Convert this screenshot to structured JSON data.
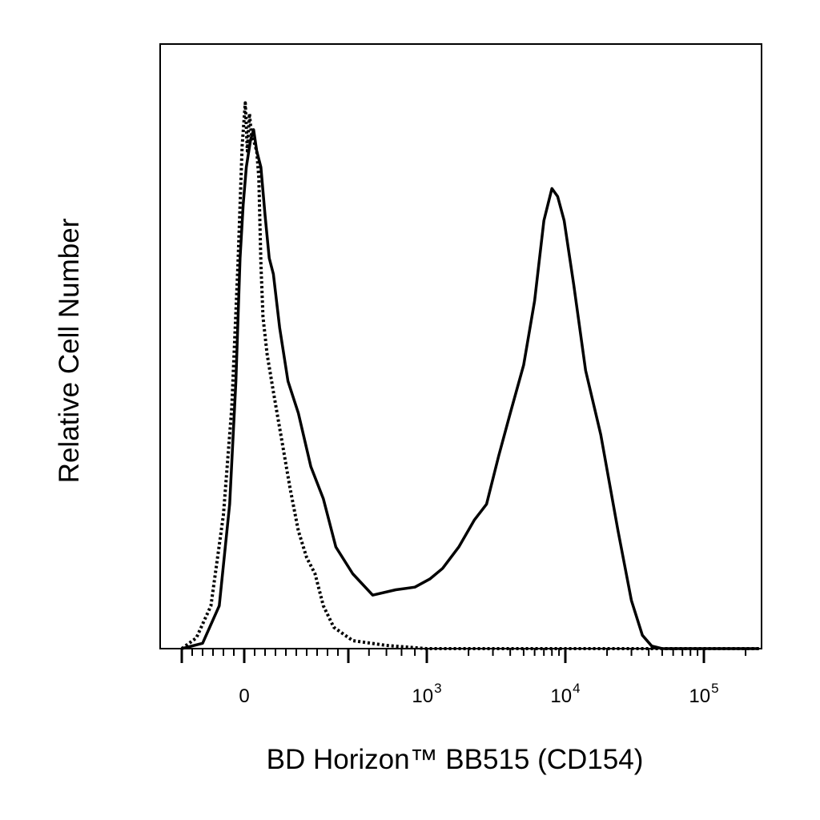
{
  "chart_data": {
    "type": "line",
    "title": "",
    "xlabel": "BD Horizon™ BB515 (CD154)",
    "ylabel": "Relative Cell Number",
    "x_scale": "biexponential",
    "xlim": [
      -300,
      250000
    ],
    "ylim": [
      0,
      1.13
    ],
    "grid": false,
    "legend": "none",
    "x_ticks": [
      {
        "value": 0,
        "base": "0",
        "exp": ""
      },
      {
        "value": 1000,
        "base": "10",
        "exp": "3"
      },
      {
        "value": 10000,
        "base": "10",
        "exp": "4"
      },
      {
        "value": 100000,
        "base": "10",
        "exp": "5"
      }
    ],
    "series": [
      {
        "style": "dotted",
        "color": "#000000",
        "points": [
          [
            -300,
            0.0
          ],
          [
            -230,
            0.02
          ],
          [
            -160,
            0.08
          ],
          [
            -100,
            0.25
          ],
          [
            -60,
            0.45
          ],
          [
            -30,
            0.72
          ],
          [
            -10,
            0.94
          ],
          [
            5,
            1.02
          ],
          [
            15,
            0.93
          ],
          [
            25,
            1.0
          ],
          [
            35,
            0.96
          ],
          [
            45,
            0.95
          ],
          [
            60,
            0.93
          ],
          [
            70,
            0.88
          ],
          [
            80,
            0.72
          ],
          [
            90,
            0.62
          ],
          [
            110,
            0.55
          ],
          [
            140,
            0.48
          ],
          [
            180,
            0.39
          ],
          [
            220,
            0.3
          ],
          [
            260,
            0.22
          ],
          [
            300,
            0.17
          ],
          [
            340,
            0.14
          ],
          [
            380,
            0.08
          ],
          [
            430,
            0.04
          ],
          [
            520,
            0.015
          ],
          [
            700,
            0.006
          ],
          [
            1000,
            0.0
          ],
          [
            250000,
            0.0
          ]
        ]
      },
      {
        "style": "solid",
        "color": "#000000",
        "points": [
          [
            -300,
            0.0
          ],
          [
            -200,
            0.01
          ],
          [
            -120,
            0.08
          ],
          [
            -70,
            0.27
          ],
          [
            -40,
            0.5
          ],
          [
            -20,
            0.73
          ],
          [
            -5,
            0.83
          ],
          [
            10,
            0.9
          ],
          [
            30,
            0.95
          ],
          [
            45,
            0.97
          ],
          [
            60,
            0.93
          ],
          [
            80,
            0.9
          ],
          [
            100,
            0.81
          ],
          [
            120,
            0.73
          ],
          [
            140,
            0.7
          ],
          [
            170,
            0.6
          ],
          [
            210,
            0.5
          ],
          [
            260,
            0.44
          ],
          [
            320,
            0.34
          ],
          [
            380,
            0.28
          ],
          [
            440,
            0.19
          ],
          [
            520,
            0.14
          ],
          [
            620,
            0.1
          ],
          [
            760,
            0.11
          ],
          [
            900,
            0.115
          ],
          [
            1050,
            0.13
          ],
          [
            1300,
            0.15
          ],
          [
            1700,
            0.19
          ],
          [
            2200,
            0.24
          ],
          [
            2700,
            0.27
          ],
          [
            3300,
            0.36
          ],
          [
            4000,
            0.44
          ],
          [
            5000,
            0.53
          ],
          [
            6000,
            0.65
          ],
          [
            7000,
            0.8
          ],
          [
            8000,
            0.86
          ],
          [
            8800,
            0.845
          ],
          [
            9800,
            0.8
          ],
          [
            11500,
            0.68
          ],
          [
            14000,
            0.52
          ],
          [
            18000,
            0.4
          ],
          [
            24000,
            0.22
          ],
          [
            30000,
            0.09
          ],
          [
            36000,
            0.025
          ],
          [
            42000,
            0.005
          ],
          [
            50000,
            0.0
          ],
          [
            250000,
            0.0
          ]
        ]
      }
    ]
  }
}
